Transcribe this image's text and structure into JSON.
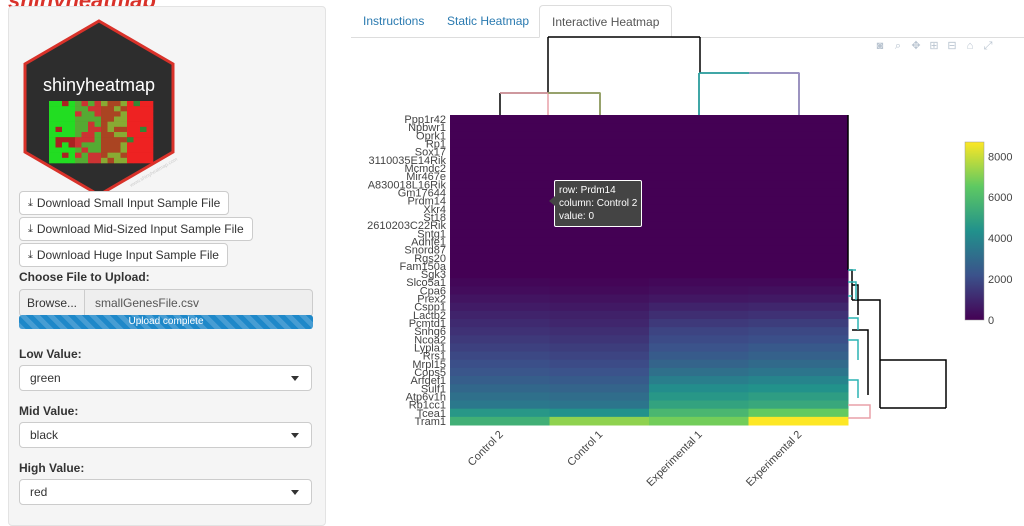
{
  "page": {
    "top_title": "shinyheatmap"
  },
  "logo": {
    "text": "shinyheatmap",
    "tagline": "www.shinyheatmap.com"
  },
  "sidebar": {
    "downloads": [
      {
        "label": "Download Small Input Sample File"
      },
      {
        "label": "Download Mid-Sized Input Sample File"
      },
      {
        "label": "Download Huge Input Sample File"
      }
    ],
    "upload_label": "Choose File to Upload:",
    "browse_label": "Browse...",
    "file_name": "smallGenesFile.csv",
    "progress_text": "Upload complete",
    "progress_value": 1.0,
    "low_label": "Low Value:",
    "low_value": "green",
    "mid_label": "Mid Value:",
    "mid_value": "black",
    "high_label": "High Value:",
    "high_value": "red"
  },
  "tabs": [
    {
      "label": "Instructions",
      "active": false
    },
    {
      "label": "Static Heatmap",
      "active": false
    },
    {
      "label": "Interactive Heatmap",
      "active": true
    }
  ],
  "modebar_icons": [
    "camera-icon",
    "zoom-icon",
    "pan-icon",
    "zoom-in-icon",
    "zoom-out-icon",
    "home-icon",
    "autoscale-icon"
  ],
  "hover": {
    "row": "row: Prdm14",
    "column": "column: Control 2",
    "value": "value: 0"
  },
  "colors": {
    "viridis_low": "#440154",
    "viridis_high": "#fde725",
    "accent": "#2a7ab0"
  },
  "chart_data": {
    "type": "heatmap",
    "columns": [
      "Control 2",
      "Control 1",
      "Experimental 1",
      "Experimental 2"
    ],
    "rows": [
      "Ppp1r42",
      "Npbwr1",
      "Oprk1",
      "Rp1",
      "Sox17",
      "3110035E14Rik",
      "Mcmdc2",
      "Mir467e",
      "A830018L16Rik",
      "Gm17644",
      "Prdm14",
      "Xkr4",
      "St18",
      "2610203C22Rik",
      "Sntg1",
      "Adhfe1",
      "Snord87",
      "Rgs20",
      "Fam150a",
      "Sgk3",
      "Slco5a1",
      "Cpa6",
      "Prex2",
      "Cspp1",
      "Lactb2",
      "Pcmtd1",
      "Snhg6",
      "Ncoa2",
      "Lypla1",
      "Rrs1",
      "Mrpl15",
      "Cops5",
      "Arfgef1",
      "Sulf1",
      "Atp6v1h",
      "Rb1cc1",
      "Tcea1",
      "Tram1"
    ],
    "values": [
      [
        0,
        0,
        0,
        0
      ],
      [
        0,
        0,
        0,
        0
      ],
      [
        0,
        0,
        0,
        0
      ],
      [
        0,
        0,
        0,
        0
      ],
      [
        0,
        0,
        0,
        0
      ],
      [
        0,
        0,
        0,
        0
      ],
      [
        0,
        0,
        0,
        0
      ],
      [
        0,
        0,
        0,
        0
      ],
      [
        0,
        0,
        0,
        0
      ],
      [
        0,
        0,
        0,
        0
      ],
      [
        0,
        0,
        0,
        0
      ],
      [
        0,
        0,
        0,
        0
      ],
      [
        0,
        0,
        0,
        0
      ],
      [
        0,
        0,
        0,
        0
      ],
      [
        0,
        0,
        0,
        0
      ],
      [
        0,
        0,
        0,
        0
      ],
      [
        0,
        0,
        0,
        0
      ],
      [
        0,
        0,
        0,
        0
      ],
      [
        0,
        0,
        0,
        0
      ],
      [
        0,
        0,
        0,
        0
      ],
      [
        150,
        120,
        180,
        200
      ],
      [
        300,
        250,
        350,
        400
      ],
      [
        500,
        450,
        600,
        650
      ],
      [
        700,
        650,
        900,
        1000
      ],
      [
        900,
        850,
        1200,
        1300
      ],
      [
        1100,
        1000,
        1500,
        1600
      ],
      [
        1300,
        1200,
        1800,
        1900
      ],
      [
        1500,
        1400,
        2000,
        2100
      ],
      [
        1700,
        1600,
        2200,
        2400
      ],
      [
        1900,
        1800,
        2500,
        2700
      ],
      [
        2100,
        2000,
        2800,
        3000
      ],
      [
        2300,
        2200,
        3200,
        3400
      ],
      [
        2600,
        2500,
        3700,
        3900
      ],
      [
        2900,
        2800,
        4200,
        4400
      ],
      [
        3200,
        3100,
        4600,
        4800
      ],
      [
        3500,
        3400,
        5000,
        5200
      ],
      [
        4600,
        4400,
        5800,
        6600
      ],
      [
        5500,
        7200,
        6800,
        8700
      ]
    ],
    "colorbar": {
      "min": 0,
      "max": 8700,
      "ticks": [
        0,
        2000,
        4000,
        6000,
        8000
      ]
    }
  }
}
